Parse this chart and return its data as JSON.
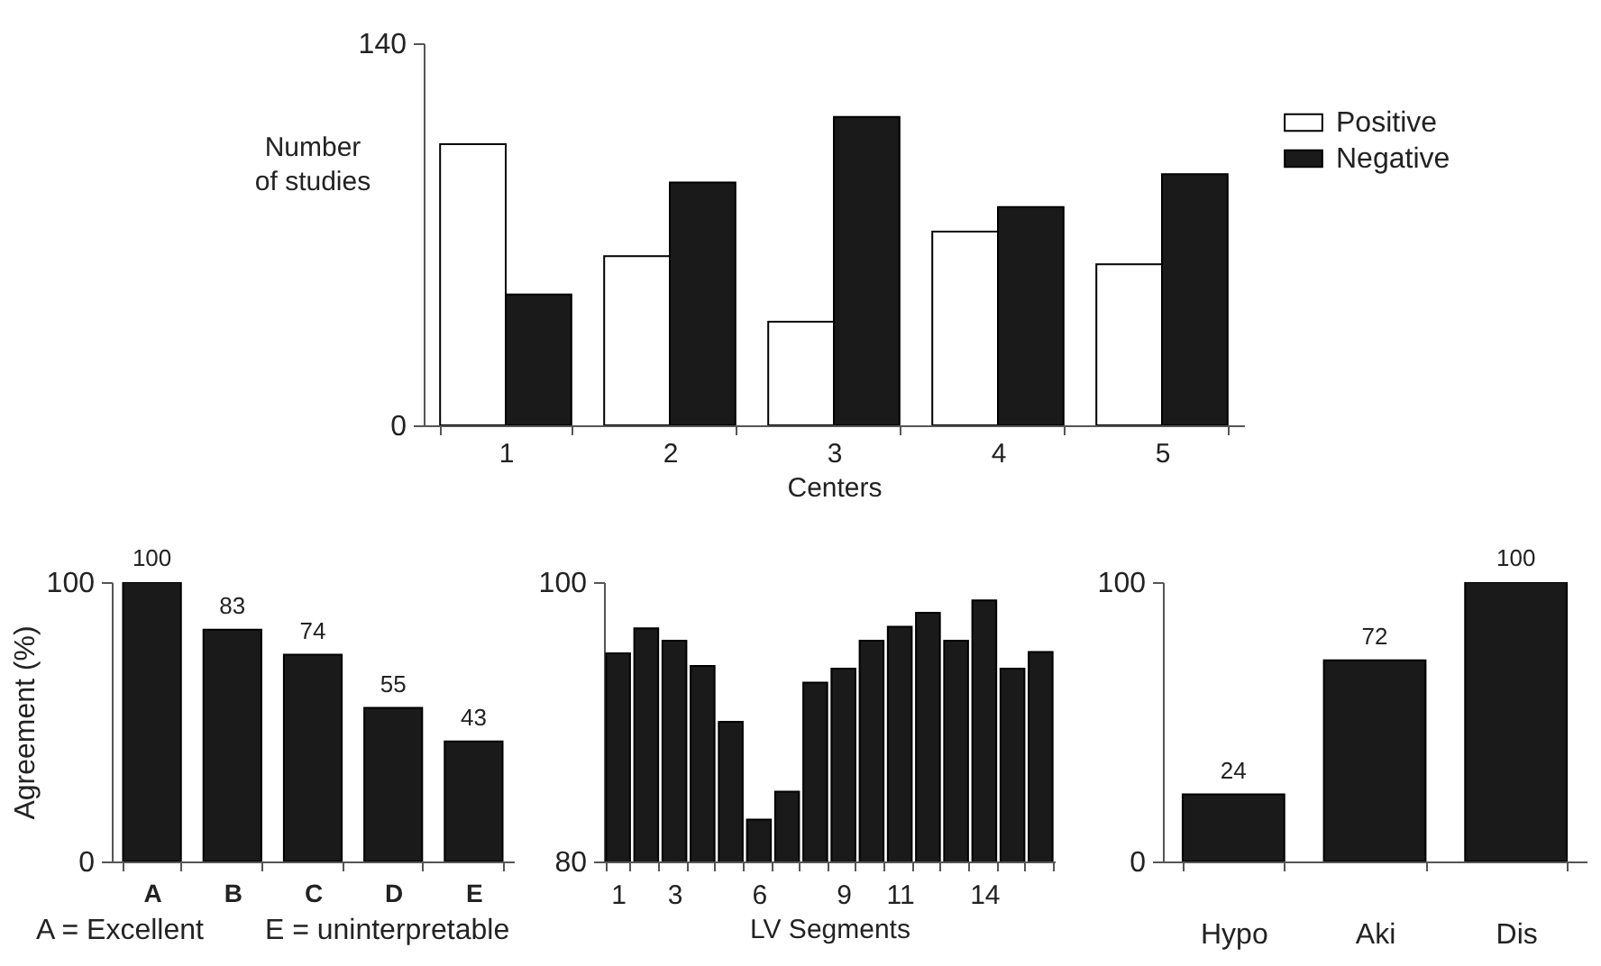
{
  "chart_data": [
    {
      "type": "bar",
      "categories": [
        "1",
        "2",
        "3",
        "4",
        "5"
      ],
      "xlabel": "Centers",
      "ylabel": "Number of studies",
      "ylim": [
        0,
        140
      ],
      "yticks": [
        0,
        140
      ],
      "legend": "top right",
      "series": [
        {
          "name": "Positive",
          "color": "#ffffff",
          "values": [
            103,
            62,
            38,
            71,
            59
          ]
        },
        {
          "name": "Negative",
          "color": "#1a1a1a",
          "values": [
            48,
            89,
            113,
            80,
            92
          ]
        }
      ]
    },
    {
      "type": "bar",
      "categories": [
        "A",
        "B",
        "C",
        "D",
        "E"
      ],
      "ylabel": "Agreement (%)",
      "ylim": [
        0,
        100
      ],
      "yticks": [
        0,
        100
      ],
      "color": "#1a1a1a",
      "values": [
        100,
        83,
        74,
        55,
        43
      ],
      "data_labels": true,
      "annotations": [
        "A = Excellent",
        "E = uninterpretable"
      ]
    },
    {
      "type": "bar",
      "categories": [
        "1",
        null,
        "3",
        null,
        null,
        "6",
        null,
        null,
        "9",
        null,
        "11",
        null,
        null,
        "14",
        null,
        null
      ],
      "xlabel": "LV Segments",
      "ylim": [
        80,
        100
      ],
      "yticks": [
        80,
        100
      ],
      "color": "#1a1a1a",
      "values": [
        94.9,
        96.7,
        95.8,
        94.0,
        90.0,
        83.0,
        85.0,
        92.8,
        93.8,
        95.8,
        96.8,
        97.8,
        95.8,
        98.7,
        93.8,
        95.0
      ]
    },
    {
      "type": "bar",
      "categories": [
        "Hypo",
        "Aki",
        "Dis"
      ],
      "ylim": [
        0,
        100
      ],
      "yticks": [
        0,
        100
      ],
      "color": "#1a1a1a",
      "values": [
        24,
        72,
        100
      ],
      "data_labels": true
    }
  ]
}
